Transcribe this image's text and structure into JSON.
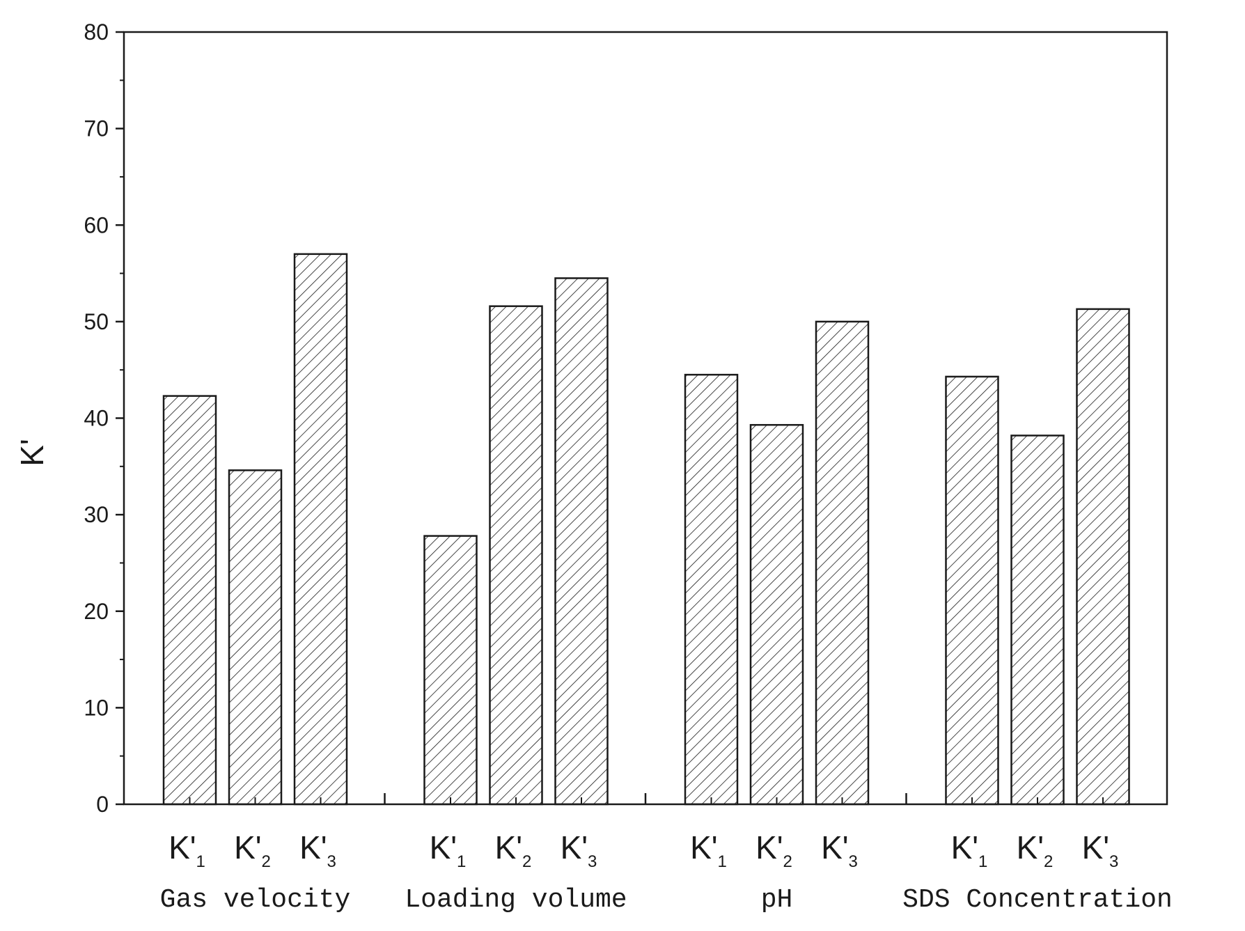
{
  "chart_data": {
    "type": "bar",
    "ylabel": "K'",
    "ylim": [
      0,
      80
    ],
    "yticks": [
      0,
      10,
      20,
      30,
      40,
      50,
      60,
      70,
      80
    ],
    "grid": false,
    "bar_fill": "diagonal-hatch",
    "colors": {
      "stroke": "#1a1a1a",
      "background": "#ffffff"
    },
    "groups": [
      {
        "name": "Gas velocity",
        "bars": [
          {
            "label": "K'",
            "sub": "1",
            "value": 42.3
          },
          {
            "label": "K'",
            "sub": "2",
            "value": 34.6
          },
          {
            "label": "K'",
            "sub": "3",
            "value": 57.0
          }
        ]
      },
      {
        "name": "Loading volume",
        "bars": [
          {
            "label": "K'",
            "sub": "1",
            "value": 27.8
          },
          {
            "label": "K'",
            "sub": "2",
            "value": 51.6
          },
          {
            "label": "K'",
            "sub": "3",
            "value": 54.5
          }
        ]
      },
      {
        "name": "pH",
        "bars": [
          {
            "label": "K'",
            "sub": "1",
            "value": 44.5
          },
          {
            "label": "K'",
            "sub": "2",
            "value": 39.3
          },
          {
            "label": "K'",
            "sub": "3",
            "value": 50.0
          }
        ]
      },
      {
        "name": "SDS Concentration",
        "bars": [
          {
            "label": "K'",
            "sub": "1",
            "value": 44.3
          },
          {
            "label": "K'",
            "sub": "2",
            "value": 38.2
          },
          {
            "label": "K'",
            "sub": "3",
            "value": 51.3
          }
        ]
      }
    ]
  }
}
